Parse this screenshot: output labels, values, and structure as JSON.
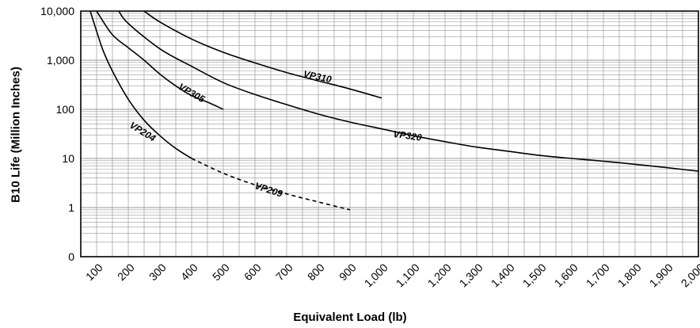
{
  "chart_data": {
    "type": "line",
    "xlabel": "Equivalent Load (lb)",
    "ylabel": "B10 Life (Million Inches)",
    "xlim": [
      50,
      2000
    ],
    "ylim_log": [
      0.1,
      10000
    ],
    "y_scale": "log",
    "grid": true,
    "x_ticks": [
      100,
      200,
      300,
      400,
      500,
      600,
      700,
      800,
      900,
      1000,
      1100,
      1200,
      1300,
      1400,
      1500,
      1600,
      1700,
      1800,
      1900,
      2000
    ],
    "x_tick_labels": [
      "100",
      "200",
      "300",
      "400",
      "500",
      "600",
      "700",
      "800",
      "900",
      "1,000",
      "1,100",
      "1,200",
      "1,300",
      "1,400",
      "1,500",
      "1,600",
      "1,700",
      "1,800",
      "1,900",
      "2,000"
    ],
    "y_ticks": [
      0.1,
      1,
      10,
      100,
      1000,
      10000
    ],
    "y_tick_labels": [
      "0",
      "1",
      "10",
      "100",
      "1,000",
      "10,000"
    ],
    "series": [
      {
        "name": "VP204",
        "dashed": false,
        "color": "#000000",
        "x": [
          80,
          100,
          120,
          150,
          200,
          250,
          300,
          350,
          400
        ],
        "y": [
          10000,
          3900,
          1600,
          600,
          160,
          60,
          29,
          16,
          10
        ]
      },
      {
        "name": "VP209",
        "dashed": true,
        "color": "#000000",
        "x": [
          400,
          500,
          600,
          700,
          800,
          900
        ],
        "y": [
          10,
          5,
          2.9,
          1.9,
          1.3,
          0.9
        ]
      },
      {
        "name": "VP305",
        "dashed": false,
        "color": "#000000",
        "x": [
          100,
          150,
          200,
          250,
          300,
          350,
          400,
          450,
          500
        ],
        "y": [
          10000,
          3300,
          1800,
          1000,
          520,
          300,
          190,
          140,
          100
        ]
      },
      {
        "name": "VP310",
        "dashed": false,
        "color": "#000000",
        "x": [
          250,
          300,
          400,
          500,
          600,
          700,
          800,
          900,
          1000
        ],
        "y": [
          10000,
          6000,
          2700,
          1450,
          880,
          560,
          380,
          260,
          170
        ]
      },
      {
        "name": "VP320",
        "dashed": false,
        "color": "#000000",
        "x": [
          170,
          200,
          300,
          400,
          500,
          600,
          700,
          800,
          900,
          1000,
          1100,
          1200,
          1300,
          1400,
          1500,
          1600,
          1700,
          1800,
          1900,
          2000
        ],
        "y": [
          10000,
          5600,
          1700,
          750,
          350,
          200,
          125,
          80,
          55,
          40,
          29,
          22,
          17,
          14,
          11.5,
          10,
          8.8,
          7.6,
          6.5,
          5.5
        ]
      }
    ],
    "annotations": [
      {
        "text": "VP204",
        "x": 240,
        "y": 31,
        "angle": 32
      },
      {
        "text": "VP209",
        "x": 640,
        "y": 2.0,
        "angle": 18
      },
      {
        "text": "VP305",
        "x": 395,
        "y": 190,
        "angle": 30
      },
      {
        "text": "VP310",
        "x": 795,
        "y": 400,
        "angle": 12
      },
      {
        "text": "VP320",
        "x": 1080,
        "y": 25,
        "angle": 8
      }
    ]
  }
}
